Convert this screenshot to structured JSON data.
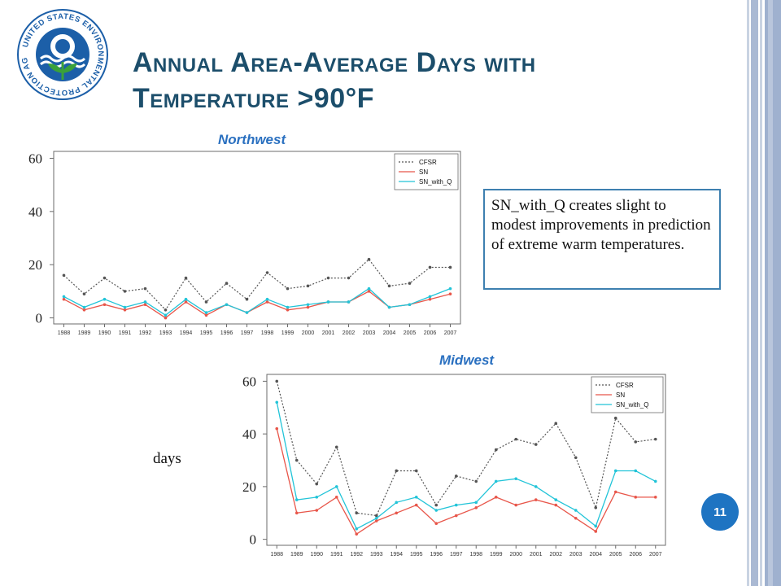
{
  "slide": {
    "title_line1": "Annual Area-Average Days with",
    "title_line2": "Temperature >90°F",
    "callout_text": "SN_with_Q creates slight to modest improvements in prediction of extreme warm temperatures.",
    "days_label": "days",
    "page_number": "11",
    "logo_text": "UNITED STATES ENVIRONMENTAL PROTECTION AGENCY"
  },
  "colors": {
    "title": "#1c4e6b",
    "panel_title": "#2a70c0",
    "cfsr": "#555555",
    "sn": "#e8564a",
    "sn_with_q": "#22c4d8",
    "badge": "#1e74c2"
  },
  "chart_data": [
    {
      "type": "line",
      "title": "Northwest",
      "x": [
        1988,
        1989,
        1990,
        1991,
        1992,
        1993,
        1994,
        1995,
        1996,
        1997,
        1998,
        1999,
        2000,
        2001,
        2002,
        2003,
        2004,
        2005,
        2006,
        2007
      ],
      "ylim": [
        0,
        60
      ],
      "yticks": [
        "0",
        "20",
        "40",
        "60"
      ],
      "legend_position": "top-right",
      "series": [
        {
          "name": "CFSR",
          "style": "dotted",
          "values": [
            16,
            9,
            15,
            10,
            11,
            3,
            15,
            6,
            13,
            7,
            17,
            11,
            12,
            15,
            15,
            22,
            12,
            13,
            19,
            19
          ]
        },
        {
          "name": "SN",
          "style": "solid",
          "values": [
            7,
            3,
            5,
            3,
            5,
            0,
            6,
            1,
            5,
            2,
            6,
            3,
            4,
            6,
            6,
            10,
            4,
            5,
            7,
            9
          ]
        },
        {
          "name": "SN_with_Q",
          "style": "solid",
          "values": [
            8,
            4,
            7,
            4,
            6,
            1,
            7,
            2,
            5,
            2,
            7,
            4,
            5,
            6,
            6,
            11,
            4,
            5,
            8,
            11
          ]
        }
      ]
    },
    {
      "type": "line",
      "title": "Midwest",
      "x": [
        1988,
        1989,
        1990,
        1991,
        1992,
        1993,
        1994,
        1995,
        1996,
        1997,
        1998,
        1999,
        2000,
        2001,
        2002,
        2003,
        2004,
        2005,
        2006,
        2007
      ],
      "ylim": [
        0,
        60
      ],
      "yticks": [
        "0",
        "20",
        "40",
        "60"
      ],
      "legend_position": "top-right",
      "series": [
        {
          "name": "CFSR",
          "style": "dotted",
          "values": [
            60,
            30,
            21,
            35,
            10,
            9,
            26,
            26,
            13,
            24,
            22,
            34,
            38,
            36,
            44,
            31,
            12,
            46,
            37,
            38
          ]
        },
        {
          "name": "SN",
          "style": "solid",
          "values": [
            42,
            10,
            11,
            16,
            2,
            7,
            10,
            13,
            6,
            9,
            12,
            16,
            13,
            15,
            13,
            8,
            3,
            18,
            16,
            16
          ]
        },
        {
          "name": "SN_with_Q",
          "style": "solid",
          "values": [
            52,
            15,
            16,
            20,
            4,
            8,
            14,
            16,
            11,
            13,
            14,
            22,
            23,
            20,
            15,
            11,
            5,
            26,
            26,
            22
          ]
        }
      ]
    }
  ]
}
